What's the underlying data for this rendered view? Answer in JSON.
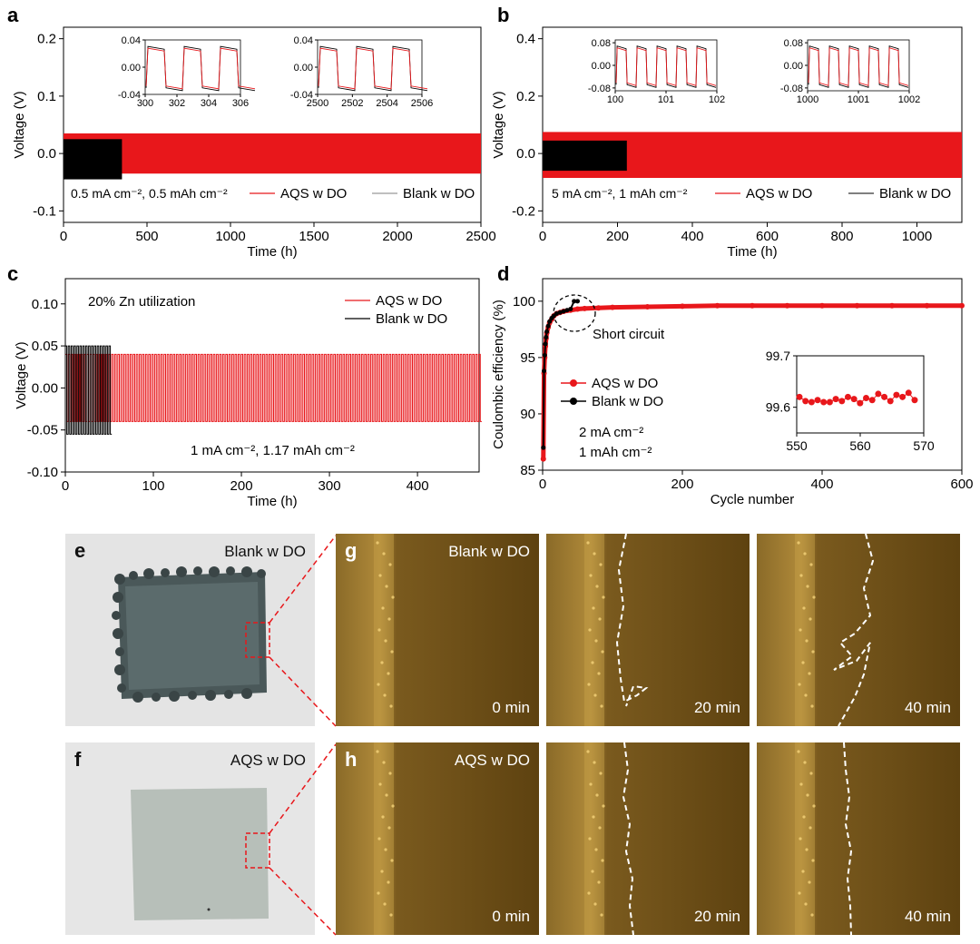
{
  "chart_data": [
    {
      "panel": "a",
      "type": "line",
      "xlabel": "Time (h)",
      "ylabel": "Voltage (V)",
      "xlim": [
        0,
        2500
      ],
      "ylim": [
        -0.12,
        0.22
      ],
      "xticks": [
        "0",
        "500",
        "1000",
        "1500",
        "2000",
        "2500"
      ],
      "yticks": [
        "-0.1",
        "0.0",
        "0.1",
        "0.2"
      ],
      "annotation": "0.5 mA cm⁻², 0.5 mAh cm⁻²",
      "series": [
        {
          "name": "AQS w DO",
          "color": "#e8171b",
          "x_range": [
            0,
            2500
          ],
          "upper": 0.035,
          "lower": -0.035
        },
        {
          "name": "Blank w DO",
          "color": "#000000",
          "x_range": [
            0,
            350
          ],
          "upper": 0.025,
          "lower": -0.045
        }
      ],
      "insets": [
        {
          "xlim": [
            300,
            306
          ],
          "ylim": [
            -0.04,
            0.04
          ],
          "xticks": [
            "300",
            "302",
            "304",
            "306"
          ],
          "yticks": [
            "0.04",
            "0.00",
            "-0.04"
          ]
        },
        {
          "xlim": [
            2500,
            2506
          ],
          "ylim": [
            -0.04,
            0.04
          ],
          "xticks": [
            "2500",
            "2502",
            "2504",
            "2506"
          ],
          "yticks": [
            "0.04",
            "0.00",
            "-0.04"
          ]
        }
      ]
    },
    {
      "panel": "b",
      "type": "line",
      "xlabel": "Time (h)",
      "ylabel": "Voltage (V)",
      "xlim": [
        0,
        1120
      ],
      "ylim": [
        -0.24,
        0.44
      ],
      "xticks": [
        "0",
        "200",
        "400",
        "600",
        "800",
        "1000"
      ],
      "yticks": [
        "-0.2",
        "0.0",
        "0.2",
        "0.4"
      ],
      "annotation": "5 mA cm⁻², 1 mAh cm⁻²",
      "series": [
        {
          "name": "AQS w DO",
          "color": "#e8171b",
          "x_range": [
            0,
            1120
          ],
          "upper": 0.075,
          "lower": -0.085
        },
        {
          "name": "Blank w DO",
          "color": "#000000",
          "x_range": [
            0,
            225
          ],
          "upper": 0.045,
          "lower": -0.06
        }
      ],
      "insets": [
        {
          "xlim": [
            100,
            102
          ],
          "ylim": [
            -0.09,
            0.09
          ],
          "xticks": [
            "100",
            "101",
            "102"
          ],
          "yticks": [
            "0.08",
            "0.00",
            "-0.08"
          ]
        },
        {
          "xlim": [
            1000,
            1002
          ],
          "ylim": [
            -0.09,
            0.09
          ],
          "xticks": [
            "1000",
            "1001",
            "1002"
          ],
          "yticks": [
            "0.08",
            "0.00",
            "-0.08"
          ]
        }
      ]
    },
    {
      "panel": "c",
      "type": "line",
      "xlabel": "Time (h)",
      "ylabel": "Voltage (V)",
      "xlim": [
        0,
        470
      ],
      "ylim": [
        -0.1,
        0.13
      ],
      "xticks": [
        "0",
        "100",
        "200",
        "300",
        "400"
      ],
      "yticks": [
        "-0.10",
        "-0.05",
        "0.00",
        "0.05",
        "0.10"
      ],
      "annotation_top": "20% Zn utilization",
      "annotation": "1 mA cm⁻², 1.17 mAh cm⁻²",
      "series": [
        {
          "name": "AQS w DO",
          "color": "#e8171b",
          "x_range": [
            0,
            470
          ],
          "upper": 0.04,
          "lower": -0.04
        },
        {
          "name": "Blank w DO",
          "color": "#000000",
          "x_range": [
            0,
            50
          ],
          "upper": 0.05,
          "lower": -0.055
        }
      ]
    },
    {
      "panel": "d",
      "type": "scatter",
      "xlabel": "Cycle number",
      "ylabel": "Coulombic efficiency (%)",
      "xlim": [
        0,
        600
      ],
      "ylim": [
        85,
        102
      ],
      "xticks": [
        "0",
        "200",
        "400",
        "600"
      ],
      "yticks": [
        "85",
        "90",
        "95",
        "100"
      ],
      "annotation_short": "Short circuit",
      "annotation_cond1": "2 mA cm⁻²",
      "annotation_cond2": "1 mAh cm⁻²",
      "series": [
        {
          "name": "AQS w DO",
          "color": "#e8171b",
          "x": [
            1,
            2,
            3,
            4,
            5,
            6,
            8,
            10,
            13,
            16,
            20,
            25,
            30,
            40,
            50,
            60,
            80,
            100,
            150,
            200,
            250,
            300,
            350,
            400,
            450,
            500,
            550,
            600
          ],
          "y": [
            86.0,
            93.6,
            95.0,
            96.0,
            96.7,
            97.2,
            97.7,
            98.1,
            98.4,
            98.7,
            98.9,
            99.0,
            99.1,
            99.2,
            99.3,
            99.35,
            99.4,
            99.45,
            99.5,
            99.55,
            99.6,
            99.6,
            99.6,
            99.6,
            99.6,
            99.6,
            99.6,
            99.6
          ]
        },
        {
          "name": "Blank w DO",
          "color": "#000000",
          "x": [
            1,
            2,
            3,
            4,
            5,
            6,
            8,
            10,
            13,
            16,
            20,
            25,
            30,
            35,
            40,
            45,
            50
          ],
          "y": [
            87.0,
            93.8,
            95.2,
            96.2,
            96.8,
            97.3,
            97.8,
            98.2,
            98.5,
            98.7,
            98.9,
            99.0,
            99.1,
            99.2,
            99.3,
            100.0,
            100.0
          ]
        }
      ],
      "inset": {
        "xlim": [
          550,
          570
        ],
        "ylim": [
          99.55,
          99.7
        ],
        "xticks": [
          "550",
          "560",
          "570"
        ],
        "yticks": [
          "99.7",
          "99.6"
        ],
        "x": [
          550,
          551,
          552,
          553,
          554,
          555,
          556,
          557,
          558,
          559,
          560,
          561,
          562,
          563,
          564,
          565,
          566,
          567,
          568,
          569
        ],
        "y": [
          99.62,
          99.612,
          99.61,
          99.614,
          99.61,
          99.61,
          99.616,
          99.612,
          99.62,
          99.616,
          99.608,
          99.618,
          99.614,
          99.626,
          99.62,
          99.612,
          99.624,
          99.62,
          99.628,
          99.614
        ]
      }
    }
  ],
  "photos": {
    "e": {
      "letter": "e",
      "label": "Blank w DO"
    },
    "f": {
      "letter": "f",
      "label": "AQS w DO"
    }
  },
  "micro": {
    "g": {
      "letter": "g",
      "label": "Blank w DO",
      "times": [
        "0 min",
        "20 min",
        "40 min"
      ]
    },
    "h": {
      "letter": "h",
      "label": "AQS w DO",
      "times": [
        "0 min",
        "20 min",
        "40 min"
      ]
    }
  },
  "colors": {
    "aqs": "#e8171b",
    "blank": "#000000",
    "micro_bg": "#6b4a10",
    "photo_bg": "#e2e2e2"
  }
}
